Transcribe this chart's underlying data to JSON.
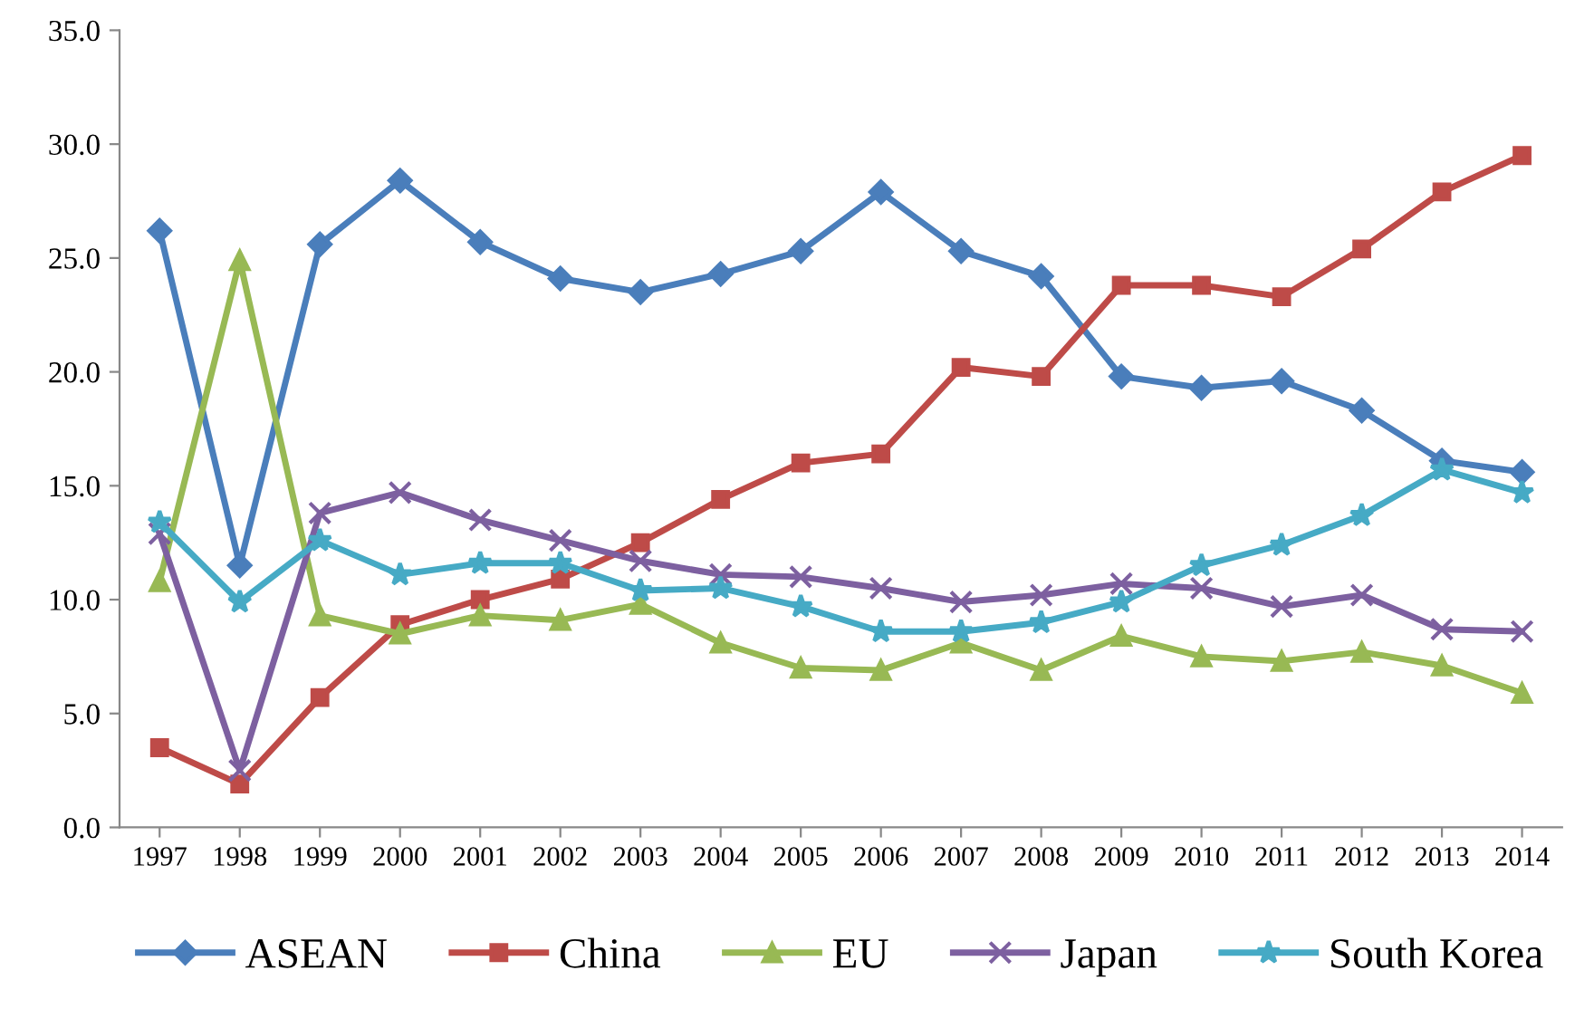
{
  "chart_data": {
    "type": "line",
    "categories": [
      "1997",
      "1998",
      "1999",
      "2000",
      "2001",
      "2002",
      "2003",
      "2004",
      "2005",
      "2006",
      "2007",
      "2008",
      "2009",
      "2010",
      "2011",
      "2012",
      "2013",
      "2014"
    ],
    "series": [
      {
        "name": "ASEAN",
        "color": "#4a7ebb",
        "marker": "diamond",
        "values": [
          26.2,
          11.5,
          25.6,
          28.4,
          25.7,
          24.1,
          23.5,
          24.3,
          25.3,
          27.9,
          25.3,
          24.2,
          19.8,
          19.3,
          19.6,
          18.3,
          16.1,
          15.6
        ]
      },
      {
        "name": "China",
        "color": "#be4b48",
        "marker": "square",
        "values": [
          3.5,
          1.9,
          5.7,
          8.9,
          10.0,
          10.9,
          12.5,
          14.4,
          16.0,
          16.4,
          20.2,
          19.8,
          23.8,
          23.8,
          23.3,
          25.4,
          27.9,
          29.5
        ]
      },
      {
        "name": "EU",
        "color": "#98b954",
        "marker": "triangle",
        "values": [
          10.8,
          24.9,
          9.3,
          8.5,
          9.3,
          9.1,
          9.8,
          8.1,
          7.0,
          6.9,
          8.1,
          6.9,
          8.4,
          7.5,
          7.3,
          7.7,
          7.1,
          5.9
        ]
      },
      {
        "name": "Japan",
        "color": "#7d60a0",
        "marker": "cross",
        "values": [
          12.9,
          2.5,
          13.8,
          14.7,
          13.5,
          12.6,
          11.7,
          11.1,
          11.0,
          10.5,
          9.9,
          10.2,
          10.7,
          10.5,
          9.7,
          10.2,
          8.7,
          8.6
        ]
      },
      {
        "name": "South Korea",
        "color": "#46aac5",
        "marker": "star",
        "values": [
          13.4,
          9.9,
          12.6,
          11.1,
          11.6,
          11.6,
          10.4,
          10.5,
          9.7,
          8.6,
          8.6,
          9.0,
          9.9,
          11.5,
          12.4,
          13.7,
          15.7,
          14.7
        ]
      }
    ],
    "ylim": [
      0,
      35
    ],
    "yticks": [
      {
        "value": 0,
        "label": "0.0"
      },
      {
        "value": 5,
        "label": "5.0"
      },
      {
        "value": 10,
        "label": "10.0"
      },
      {
        "value": 15,
        "label": "15.0"
      },
      {
        "value": 20,
        "label": "20.0"
      },
      {
        "value": 25,
        "label": "25.0"
      },
      {
        "value": 30,
        "label": "30.0"
      },
      {
        "value": 35,
        "label": "35.0"
      }
    ],
    "legend": "bottom",
    "line_style": "solid"
  }
}
